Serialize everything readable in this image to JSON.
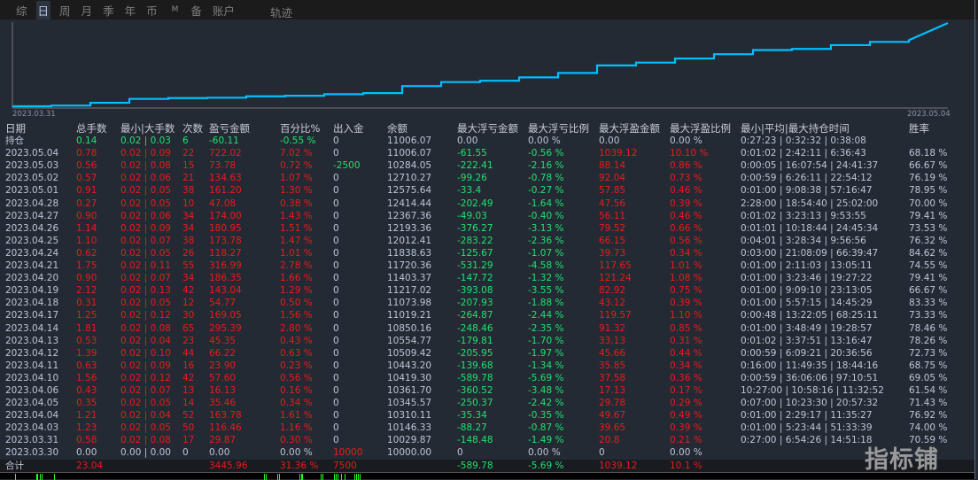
{
  "tabs": [
    "综",
    "日",
    "周",
    "月",
    "季",
    "年",
    "币",
    "M",
    "备",
    "账户"
  ],
  "active_tab": "日",
  "track_label": "轨迹",
  "chart_data": {
    "type": "line",
    "x": [
      "2023.03.30",
      "2023.03.31",
      "2023.04.03",
      "2023.04.04",
      "2023.04.05",
      "2023.04.06",
      "2023.04.10",
      "2023.04.11",
      "2023.04.12",
      "2023.04.13",
      "2023.04.14",
      "2023.04.17",
      "2023.04.18",
      "2023.04.19",
      "2023.04.20",
      "2023.04.21",
      "2023.04.24",
      "2023.04.25",
      "2023.04.26",
      "2023.04.27",
      "2023.04.28",
      "2023.05.01",
      "2023.05.02",
      "2023.05.03",
      "2023.05.04"
    ],
    "values": [
      0,
      29.87,
      146.33,
      310.11,
      345.57,
      361.7,
      419.3,
      443.2,
      509.42,
      554.77,
      850.16,
      1019.21,
      1073.98,
      1217.02,
      1403.37,
      1720.36,
      1838.63,
      2012.41,
      2193.36,
      2367.36,
      2414.44,
      2575.64,
      2710.27,
      2784.05,
      3506.07
    ],
    "x_start_label": "2023.03.31",
    "x_end_label": "2023.05.04",
    "color": "#00bfff",
    "grid": false
  },
  "table": {
    "headers": [
      "日期",
      "总手数",
      "最小|大手数",
      "次数",
      "盈亏金额",
      "百分比%",
      "出入金",
      "余额",
      "最大浮亏金额",
      "最大浮亏比例",
      "最大浮盈金额",
      "最大浮盈比例",
      "最小|平均|最大持仓时间",
      "胜率"
    ],
    "holding": [
      "持仓",
      "0.14",
      "0.02 | 0.03",
      "6",
      "-60.11",
      "-0.55 %",
      "0",
      "11006.07",
      "0.00",
      "0.00 %",
      "0.00",
      "0.00 %",
      "0:27:23 | 0:32:32 | 0:38:08",
      ""
    ],
    "rows": [
      [
        "2023.05.04",
        "0.78",
        "0.02 | 0.09",
        "22",
        "722.02",
        "7.02 %",
        "0",
        "11006.07",
        "-61.55",
        "-0.56 %",
        "1039.12",
        "10.10 %",
        "0:01:02 | 2:42:11 | 6:36:43",
        "68.18 %"
      ],
      [
        "2023.05.03",
        "0.56",
        "0.02 | 0.08",
        "15",
        "73.78",
        "0.72 %",
        "-2500",
        "10284.05",
        "-222.41",
        "-2.16 %",
        "88.14",
        "0.86 %",
        "0:00:05 | 16:07:54 | 24:41:37",
        "66.67 %"
      ],
      [
        "2023.05.02",
        "0.57",
        "0.02 | 0.06",
        "21",
        "134.63",
        "1.07 %",
        "0",
        "12710.27",
        "-99.26",
        "-0.78 %",
        "92.04",
        "0.73 %",
        "0:00:59 | 6:26:11 | 22:54:12",
        "76.19 %"
      ],
      [
        "2023.05.01",
        "0.91",
        "0.02 | 0.05",
        "38",
        "161.20",
        "1.30 %",
        "0",
        "12575.64",
        "-33.4",
        "-0.27 %",
        "57.85",
        "0.46 %",
        "0:01:00 | 9:08:38 | 57:16:47",
        "78.95 %"
      ],
      [
        "2023.04.28",
        "0.27",
        "0.02 | 0.05",
        "10",
        "47.08",
        "0.38 %",
        "0",
        "12414.44",
        "-202.49",
        "-1.64 %",
        "47.56",
        "0.39 %",
        "2:28:00 | 18:54:40 | 25:02:00",
        "70.00 %"
      ],
      [
        "2023.04.27",
        "0.90",
        "0.02 | 0.06",
        "34",
        "174.00",
        "1.43 %",
        "0",
        "12367.36",
        "-49.03",
        "-0.40 %",
        "56.11",
        "0.46 %",
        "0:01:02 | 3:23:13 | 9:53:55",
        "79.41 %"
      ],
      [
        "2023.04.26",
        "1.14",
        "0.02 | 0.09",
        "34",
        "180.95",
        "1.51 %",
        "0",
        "12193.36",
        "-376.27",
        "-3.13 %",
        "79.52",
        "0.66 %",
        "0:01:01 | 10:18:44 | 24:45:34",
        "73.53 %"
      ],
      [
        "2023.04.25",
        "1.10",
        "0.02 | 0.07",
        "38",
        "173.78",
        "1.47 %",
        "0",
        "12012.41",
        "-283.22",
        "-2.36 %",
        "66.15",
        "0.56 %",
        "0:04:01 | 3:28:34 | 9:56:56",
        "76.32 %"
      ],
      [
        "2023.04.24",
        "0.62",
        "0.02 | 0.05",
        "26",
        "118.27",
        "1.01 %",
        "0",
        "11838.63",
        "-125.67",
        "-1.07 %",
        "39.73",
        "0.34 %",
        "0:03:00 | 21:08:09 | 66:39:47",
        "84.62 %"
      ],
      [
        "2023.04.21",
        "1.75",
        "0.02 | 0.11",
        "55",
        "316.99",
        "2.78 %",
        "0",
        "11720.36",
        "-531.29",
        "-4.58 %",
        "117.65",
        "1.01 %",
        "0:01:00 | 2:11:03 | 13:05:11",
        "74.55 %"
      ],
      [
        "2023.04.20",
        "0.90",
        "0.02 | 0.07",
        "34",
        "186.35",
        "1.66 %",
        "0",
        "11403.37",
        "-147.72",
        "-1.32 %",
        "121.24",
        "1.08 %",
        "0:01:00 | 3:23:46 | 19:27:22",
        "79.41 %"
      ],
      [
        "2023.04.19",
        "2.12",
        "0.02 | 0.13",
        "42",
        "143.04",
        "1.29 %",
        "0",
        "11217.02",
        "-393.08",
        "-3.55 %",
        "82.92",
        "0.75 %",
        "0:01:00 | 9:09:10 | 23:13:05",
        "66.67 %"
      ],
      [
        "2023.04.18",
        "0.31",
        "0.02 | 0.05",
        "12",
        "54.77",
        "0.50 %",
        "0",
        "11073.98",
        "-207.93",
        "-1.88 %",
        "43.12",
        "0.39 %",
        "0:01:00 | 5:57:15 | 14:45:29",
        "83.33 %"
      ],
      [
        "2023.04.17",
        "1.25",
        "0.02 | 0.12",
        "30",
        "169.05",
        "1.56 %",
        "0",
        "11019.21",
        "-264.87",
        "-2.44 %",
        "119.57",
        "1.10 %",
        "0:00:48 | 13:22:05 | 68:25:11",
        "73.33 %"
      ],
      [
        "2023.04.14",
        "1.81",
        "0.02 | 0.08",
        "65",
        "295.39",
        "2.80 %",
        "0",
        "10850.16",
        "-248.46",
        "-2.35 %",
        "91.32",
        "0.85 %",
        "0:01:00 | 3:48:49 | 19:28:57",
        "78.46 %"
      ],
      [
        "2023.04.13",
        "0.53",
        "0.02 | 0.04",
        "23",
        "45.35",
        "0.43 %",
        "0",
        "10554.77",
        "-179.81",
        "-1.70 %",
        "33.13",
        "0.31 %",
        "0:01:02 | 3:37:51 | 13:16:47",
        "78.26 %"
      ],
      [
        "2023.04.12",
        "1.39",
        "0.02 | 0.10",
        "44",
        "66.22",
        "0.63 %",
        "0",
        "10509.42",
        "-205.95",
        "-1.97 %",
        "45.66",
        "0.44 %",
        "0:00:59 | 6:09:21 | 20:36:56",
        "72.73 %"
      ],
      [
        "2023.04.11",
        "0.63",
        "0.02 | 0.09",
        "16",
        "23.90",
        "0.23 %",
        "0",
        "10443.20",
        "-139.68",
        "-1.34 %",
        "35.85",
        "0.34 %",
        "0:16:00 | 11:49:35 | 18:44:16",
        "68.75 %"
      ],
      [
        "2023.04.10",
        "1.56",
        "0.02 | 0.12",
        "42",
        "57.60",
        "0.56 %",
        "0",
        "10419.30",
        "-589.78",
        "-5.69 %",
        "37.58",
        "0.36 %",
        "0:00:59 | 36:06:06 | 97:10:51",
        "69.05 %"
      ],
      [
        "2023.04.06",
        "0.43",
        "0.02 | 0.07",
        "13",
        "16.13",
        "0.16 %",
        "0",
        "10361.70",
        "-360.52",
        "-3.48 %",
        "17.13",
        "0.17 %",
        "10:27:00 | 10:58:16 | 11:32:52",
        "61.54 %"
      ],
      [
        "2023.04.05",
        "0.35",
        "0.02 | 0.05",
        "14",
        "35.46",
        "0.34 %",
        "0",
        "10345.57",
        "-250.37",
        "-2.42 %",
        "29.78",
        "0.29 %",
        "0:07:00 | 10:23:30 | 20:57:32",
        "71.43 %"
      ],
      [
        "2023.04.04",
        "1.21",
        "0.02 | 0.04",
        "52",
        "163.78",
        "1.61 %",
        "0",
        "10310.11",
        "-35.34",
        "-0.35 %",
        "49.67",
        "0.49 %",
        "0:01:00 | 2:29:17 | 11:35:27",
        "76.92 %"
      ],
      [
        "2023.04.03",
        "1.23",
        "0.02 | 0.05",
        "50",
        "116.46",
        "1.16 %",
        "0",
        "10146.33",
        "-88.27",
        "-0.87 %",
        "39.65",
        "0.39 %",
        "0:01:00 | 5:23:44 | 51:33:39",
        "74.00 %"
      ],
      [
        "2023.03.31",
        "0.58",
        "0.02 | 0.08",
        "17",
        "29.87",
        "0.30 %",
        "0",
        "10029.87",
        "-148.48",
        "-1.49 %",
        "20.8",
        "0.21 %",
        "0:27:00 | 6:54:26 | 14:51:18",
        "70.59 %"
      ],
      [
        "2023.03.30",
        "0.00",
        "0.00 | 0.00",
        "0",
        "0.00",
        "0.00 %",
        "10000",
        "10000.00",
        "0",
        "0.00 %",
        "0",
        "0.00 %",
        "",
        ""
      ]
    ],
    "total": [
      "合计",
      "23.04",
      "",
      "",
      "3445.96",
      "31.36 %",
      "7500",
      "",
      "-589.78",
      "-5.69 %",
      "1039.12",
      "10.1 %",
      "",
      ""
    ]
  },
  "watermark": "指标铺",
  "colors": {
    "profit": "#e81c1c",
    "loss": "#22e070",
    "text": "#bcc6d8",
    "line": "#00bfff"
  }
}
